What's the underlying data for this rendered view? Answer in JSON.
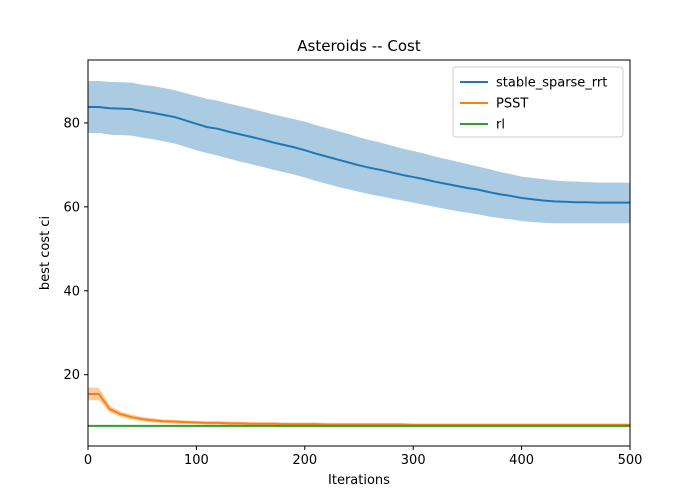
{
  "chart_data": {
    "type": "line",
    "title": "Asteroids -- Cost",
    "xlabel": "Iterations",
    "ylabel": "best cost ci",
    "xlim": [
      0,
      500
    ],
    "ylim": [
      3,
      95
    ],
    "xticks": [
      0,
      100,
      200,
      300,
      400,
      500
    ],
    "yticks": [
      20,
      40,
      60,
      80
    ],
    "grid": false,
    "legend_position": "top-right",
    "x": [
      0,
      10,
      20,
      30,
      40,
      50,
      60,
      70,
      80,
      90,
      100,
      110,
      120,
      130,
      140,
      150,
      160,
      170,
      180,
      190,
      200,
      210,
      220,
      230,
      240,
      250,
      260,
      270,
      280,
      290,
      300,
      310,
      320,
      330,
      340,
      350,
      360,
      370,
      380,
      390,
      400,
      410,
      420,
      430,
      440,
      450,
      460,
      470,
      480,
      490,
      500
    ],
    "series": [
      {
        "name": "stable_sparse_rrt",
        "color": "#1f77b4",
        "band_color": "#a6c8e2",
        "mean": [
          83.8,
          83.8,
          83.5,
          83.4,
          83.3,
          82.8,
          82.4,
          81.9,
          81.4,
          80.6,
          79.8,
          79.0,
          78.6,
          77.9,
          77.3,
          76.7,
          76.1,
          75.4,
          74.8,
          74.2,
          73.5,
          72.7,
          72.0,
          71.3,
          70.6,
          69.9,
          69.3,
          68.8,
          68.2,
          67.6,
          67.1,
          66.6,
          66.0,
          65.5,
          65.0,
          64.5,
          64.1,
          63.5,
          63.0,
          62.6,
          62.1,
          61.8,
          61.5,
          61.3,
          61.2,
          61.1,
          61.1,
          61.0,
          61.0,
          61.0,
          61.0
        ],
        "upper": [
          90.0,
          90.0,
          89.8,
          89.7,
          89.6,
          89.1,
          88.8,
          88.3,
          87.8,
          87.1,
          86.4,
          85.7,
          85.3,
          84.6,
          84.0,
          83.4,
          82.8,
          82.1,
          81.5,
          80.9,
          80.3,
          79.5,
          78.8,
          78.1,
          77.4,
          76.6,
          75.9,
          75.3,
          74.6,
          73.9,
          73.3,
          72.7,
          72.0,
          71.4,
          70.8,
          70.2,
          69.6,
          69.0,
          68.3,
          67.8,
          67.2,
          66.9,
          66.6,
          66.3,
          66.1,
          66.0,
          65.9,
          65.8,
          65.8,
          65.8,
          65.7
        ],
        "lower": [
          77.6,
          77.6,
          77.2,
          77.1,
          77.0,
          76.5,
          76.1,
          75.6,
          75.1,
          74.3,
          73.5,
          72.8,
          72.2,
          71.5,
          70.8,
          70.2,
          69.6,
          68.9,
          68.3,
          67.7,
          67.0,
          66.2,
          65.5,
          64.8,
          64.2,
          63.6,
          63.0,
          62.5,
          62.0,
          61.5,
          61.0,
          60.5,
          60.0,
          59.5,
          59.0,
          58.6,
          58.2,
          57.7,
          57.3,
          57.0,
          56.6,
          56.4,
          56.2,
          56.1,
          56.1,
          56.1,
          56.1,
          56.1,
          56.1,
          56.1,
          56.1
        ]
      },
      {
        "name": "PSST",
        "color": "#ff7f0e",
        "band_color": "#fec89a",
        "mean": [
          15.4,
          15.4,
          11.8,
          10.6,
          9.9,
          9.4,
          9.1,
          8.9,
          8.8,
          8.7,
          8.6,
          8.5,
          8.5,
          8.4,
          8.4,
          8.3,
          8.3,
          8.3,
          8.2,
          8.2,
          8.2,
          8.2,
          8.1,
          8.1,
          8.1,
          8.1,
          8.1,
          8.1,
          8.1,
          8.1,
          8.0,
          8.0,
          8.0,
          8.0,
          8.0,
          8.0,
          8.0,
          8.0,
          8.0,
          8.0,
          8.0,
          8.0,
          8.0,
          8.0,
          8.0,
          8.0,
          8.0,
          8.0,
          8.0,
          8.0,
          8.0
        ],
        "upper": [
          16.9,
          16.9,
          12.6,
          11.2,
          10.5,
          9.9,
          9.6,
          9.3,
          9.2,
          9.1,
          9.0,
          8.9,
          8.9,
          8.8,
          8.8,
          8.7,
          8.7,
          8.7,
          8.6,
          8.6,
          8.6,
          8.6,
          8.5,
          8.5,
          8.5,
          8.5,
          8.5,
          8.5,
          8.5,
          8.5,
          8.4,
          8.4,
          8.4,
          8.4,
          8.4,
          8.4,
          8.4,
          8.4,
          8.4,
          8.4,
          8.4,
          8.4,
          8.4,
          8.4,
          8.4,
          8.4,
          8.4,
          8.4,
          8.4,
          8.4,
          8.4
        ],
        "lower": [
          13.9,
          13.9,
          11.0,
          10.0,
          9.3,
          8.9,
          8.6,
          8.5,
          8.4,
          8.3,
          8.2,
          8.1,
          8.1,
          8.0,
          8.0,
          7.9,
          7.9,
          7.9,
          7.8,
          7.8,
          7.8,
          7.8,
          7.7,
          7.7,
          7.7,
          7.7,
          7.7,
          7.7,
          7.7,
          7.7,
          7.6,
          7.6,
          7.6,
          7.6,
          7.6,
          7.6,
          7.6,
          7.6,
          7.6,
          7.6,
          7.6,
          7.6,
          7.6,
          7.6,
          7.6,
          7.6,
          7.6,
          7.6,
          7.6,
          7.6,
          7.6
        ]
      },
      {
        "name": "rl",
        "color": "#2ca02c",
        "band_color": "#9ed79e",
        "mean": [
          7.8,
          7.8,
          7.8,
          7.8,
          7.8,
          7.8,
          7.8,
          7.8,
          7.8,
          7.8,
          7.8,
          7.8,
          7.8,
          7.8,
          7.8,
          7.8,
          7.8,
          7.8,
          7.8,
          7.8,
          7.8,
          7.8,
          7.8,
          7.8,
          7.8,
          7.8,
          7.8,
          7.8,
          7.8,
          7.8,
          7.8,
          7.8,
          7.8,
          7.8,
          7.8,
          7.8,
          7.8,
          7.8,
          7.8,
          7.8,
          7.8,
          7.8,
          7.8,
          7.8,
          7.8,
          7.8,
          7.8,
          7.8,
          7.8,
          7.8,
          7.8
        ],
        "upper": [
          8.0,
          8.0,
          8.0,
          8.0,
          8.0,
          8.0,
          8.0,
          8.0,
          8.0,
          8.0,
          8.0,
          8.0,
          8.0,
          8.0,
          8.0,
          8.0,
          8.0,
          8.0,
          8.0,
          8.0,
          8.0,
          8.0,
          8.0,
          8.0,
          8.0,
          8.0,
          8.0,
          8.0,
          8.0,
          8.0,
          8.0,
          8.0,
          8.0,
          8.0,
          8.0,
          8.0,
          8.0,
          8.0,
          8.0,
          8.0,
          8.0,
          8.0,
          8.0,
          8.0,
          8.0,
          8.0,
          8.0,
          8.0,
          8.0,
          8.0,
          8.0
        ],
        "lower": [
          7.6,
          7.6,
          7.6,
          7.6,
          7.6,
          7.6,
          7.6,
          7.6,
          7.6,
          7.6,
          7.6,
          7.6,
          7.6,
          7.6,
          7.6,
          7.6,
          7.6,
          7.6,
          7.6,
          7.6,
          7.6,
          7.6,
          7.6,
          7.6,
          7.6,
          7.6,
          7.6,
          7.6,
          7.6,
          7.6,
          7.6,
          7.6,
          7.6,
          7.6,
          7.6,
          7.6,
          7.6,
          7.6,
          7.6,
          7.6,
          7.6,
          7.6,
          7.6,
          7.6,
          7.6,
          7.6,
          7.6,
          7.6,
          7.6,
          7.6,
          7.6
        ]
      }
    ]
  }
}
